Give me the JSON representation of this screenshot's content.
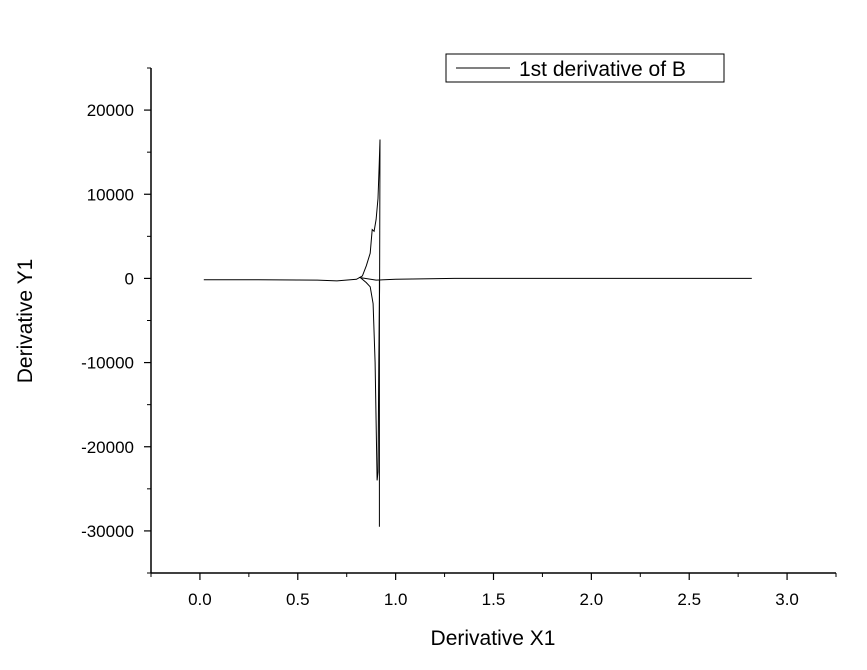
{
  "chart_data": {
    "type": "line",
    "title": "",
    "xlabel": "Derivative X1",
    "ylabel": "Derivative Y1",
    "xlim": [
      -0.25,
      3.25
    ],
    "ylim": [
      -35000,
      25000
    ],
    "xticks": [
      0.0,
      0.5,
      1.0,
      1.5,
      2.0,
      2.5,
      3.0
    ],
    "xtick_labels": [
      "0.0",
      "0.5",
      "1.0",
      "1.5",
      "2.0",
      "2.5",
      "3.0"
    ],
    "yticks": [
      -30000,
      -20000,
      -10000,
      0,
      10000,
      20000
    ],
    "ytick_labels": [
      "-30000",
      "-20000",
      "-10000",
      "0",
      "10000",
      "20000"
    ],
    "grid": false,
    "legend_position": "top-right",
    "series": [
      {
        "name": "1st derivative of B",
        "color": "#000000",
        "x": [
          0.02,
          0.3,
          0.6,
          0.7,
          0.8,
          0.83,
          0.85,
          0.87,
          0.88,
          0.89,
          0.9,
          0.91,
          0.913,
          0.916,
          0.92,
          0.918,
          0.916,
          0.914,
          0.912,
          0.91,
          0.905,
          0.895,
          0.885,
          0.87,
          0.85,
          0.82,
          0.9,
          1.0,
          1.3,
          2.0,
          2.82
        ],
        "y": [
          -150,
          -150,
          -200,
          -300,
          -100,
          300,
          1500,
          3000,
          5800,
          5600,
          7000,
          9500,
          11500,
          13500,
          16500,
          -1000,
          -5000,
          -10000,
          -17000,
          -23000,
          -24000,
          -10000,
          -3000,
          -1000,
          -500,
          100,
          -200,
          -100,
          0,
          0,
          0
        ]
      }
    ]
  }
}
